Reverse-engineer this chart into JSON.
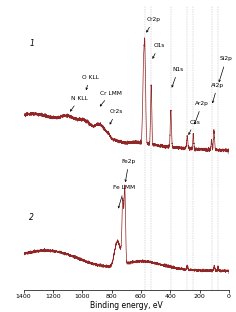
{
  "xlabel": "Binding energy, eV",
  "bg_color": "#ffffff",
  "line_color": "#8B1A1A",
  "dashed_lines_x": [
    573,
    530,
    396,
    284,
    242,
    118,
    74
  ],
  "xticks": [
    0,
    200,
    400,
    600,
    800,
    1000,
    1200,
    1400
  ],
  "label1": "1",
  "label2": "2",
  "fs_ann": 4.2,
  "fs_label": 5.5,
  "fs_tick": 4.5
}
